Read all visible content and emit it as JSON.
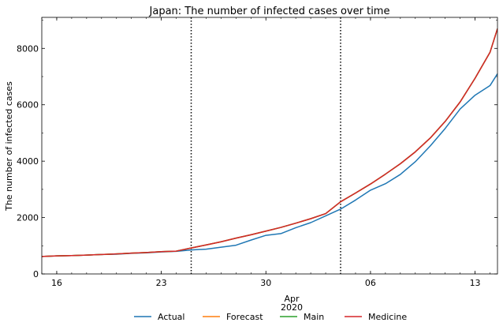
{
  "chart_data": {
    "type": "line",
    "title": "Japan: The number of infected cases over time",
    "ylabel": "The number of infected cases",
    "xlabel": "",
    "x_month_label": "Apr",
    "x_year_label": "2020",
    "x_axis_unit": "day of year 2020 (Mar 16 = 0)",
    "xlim": [
      -1,
      29.5
    ],
    "ylim": [
      0,
      9100
    ],
    "x_ticks": [
      {
        "pos": 0,
        "label": "16"
      },
      {
        "pos": 7,
        "label": "23"
      },
      {
        "pos": 14,
        "label": "30"
      },
      {
        "pos": 21,
        "label": "06"
      },
      {
        "pos": 28,
        "label": "13"
      }
    ],
    "y_ticks": [
      {
        "value": 0,
        "label": "0"
      },
      {
        "value": 2000,
        "label": "2000"
      },
      {
        "value": 4000,
        "label": "4000"
      },
      {
        "value": 6000,
        "label": "6000"
      },
      {
        "value": 8000,
        "label": "8000"
      }
    ],
    "vlines": [
      9,
      19
    ],
    "x": [
      -1,
      0,
      1,
      2,
      3,
      4,
      5,
      6,
      7,
      8,
      9,
      10,
      11,
      12,
      13,
      14,
      15,
      16,
      17,
      18,
      19,
      20,
      21,
      22,
      23,
      24,
      25,
      26,
      27,
      28,
      29,
      29.5
    ],
    "series": [
      {
        "name": "Actual",
        "color": "#1f77b4",
        "values": [
          620,
          640,
          650,
          670,
          690,
          700,
          730,
          750,
          780,
          800,
          850,
          880,
          950,
          1020,
          1200,
          1370,
          1430,
          1640,
          1820,
          2060,
          2300,
          2620,
          2970,
          3200,
          3530,
          3980,
          4540,
          5160,
          5850,
          6340,
          6680,
          7100
        ]
      },
      {
        "name": "Forecast",
        "color": "#ff7f0e",
        "values": [
          620,
          640,
          650,
          670,
          690,
          710,
          740,
          760,
          790,
          810,
          920,
          1030,
          1140,
          1270,
          1390,
          1520,
          1650,
          1800,
          1960,
          2140,
          2560,
          2870,
          3190,
          3540,
          3910,
          4330,
          4820,
          5410,
          6100,
          6940,
          7860,
          8700
        ]
      },
      {
        "name": "Main",
        "color": "#2ca02c",
        "values": [
          620,
          640,
          650,
          670,
          690,
          710,
          740,
          760,
          790,
          810,
          920,
          1030,
          1140,
          1270,
          1390,
          1520,
          1650,
          1800,
          1960,
          2140,
          2560,
          2870,
          3190,
          3540,
          3910,
          4330,
          4820,
          5410,
          6100,
          6940,
          7860,
          8700
        ]
      },
      {
        "name": "Medicine",
        "color": "#d62728",
        "values": [
          620,
          640,
          650,
          670,
          690,
          710,
          740,
          760,
          790,
          810,
          920,
          1030,
          1140,
          1270,
          1390,
          1520,
          1650,
          1800,
          1960,
          2140,
          2560,
          2870,
          3190,
          3540,
          3910,
          4330,
          4820,
          5410,
          6100,
          6940,
          7860,
          8700
        ]
      }
    ]
  }
}
